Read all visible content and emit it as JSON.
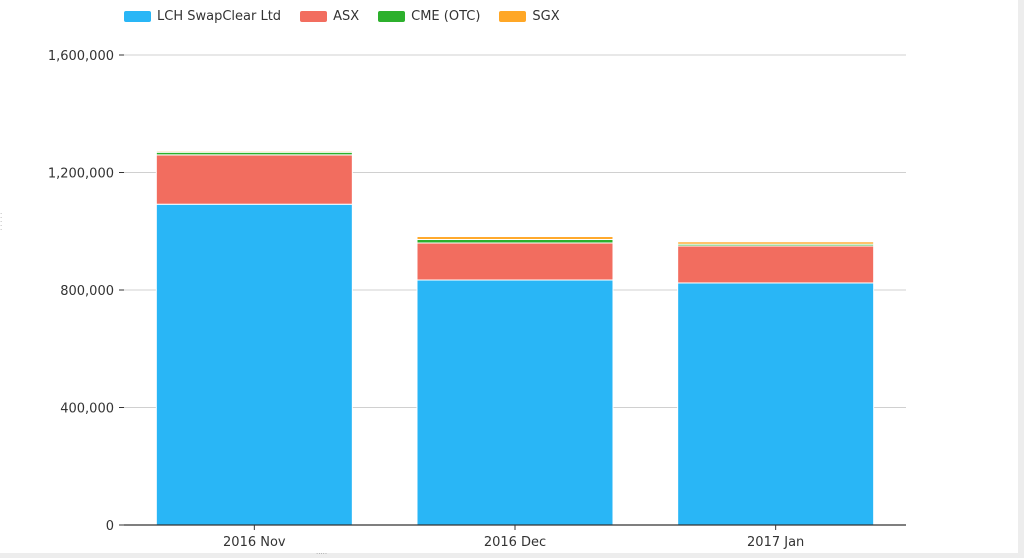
{
  "chart_data": {
    "type": "bar",
    "stacked": true,
    "categories": [
      "2016 Nov",
      "2016 Dec",
      "2017 Jan"
    ],
    "series": [
      {
        "name": "LCH SwapClear Ltd",
        "color": "#29B6F6",
        "values": [
          1092000,
          834000,
          824000
        ]
      },
      {
        "name": "ASX",
        "color": "#F26D5F",
        "values": [
          168000,
          126000,
          126000
        ]
      },
      {
        "name": "CME (OTC)",
        "color": "#2CB02C",
        "values": [
          9000,
          12000,
          6000
        ]
      },
      {
        "name": "SGX",
        "color": "#FFA726",
        "values": [
          4000,
          10000,
          8000
        ]
      }
    ],
    "ylim": [
      0,
      1600000
    ],
    "yticks": [
      0,
      400000,
      800000,
      1200000,
      1600000
    ],
    "ytick_labels": [
      "0",
      "400,000",
      "800,000",
      "1,200,000",
      "1,600,000"
    ],
    "grid": true,
    "legend": "top-left",
    "title": "",
    "xlabel": "",
    "ylabel": ""
  }
}
